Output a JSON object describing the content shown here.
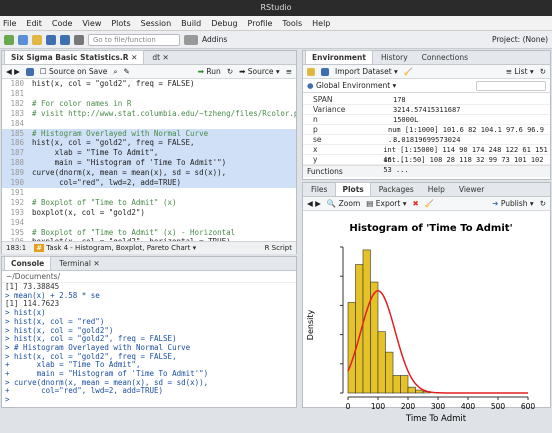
{
  "window": {
    "title": "RStudio"
  },
  "menu": [
    "File",
    "Edit",
    "Code",
    "View",
    "Plots",
    "Session",
    "Build",
    "Debug",
    "Profile",
    "Tools",
    "Help"
  ],
  "toolbar": {
    "goto": "Go to file/function",
    "addins": "Addins",
    "project": "Project: (None)"
  },
  "editor": {
    "tabs": [
      "Six Sigma Basic Statistics.R",
      "dt"
    ],
    "source_on_save": "Source on Save",
    "run": "Run",
    "source": "Source",
    "lines": [
      {
        "n": "180",
        "t": "hist(x, col = \"gold2\", freq = FALSE)"
      },
      {
        "n": "181",
        "t": ""
      },
      {
        "n": "182",
        "t": "# For color names in R"
      },
      {
        "n": "183",
        "t": "# visit http://www.stat.columbia.edu/~tzheng/files/Rcolor.pdf"
      },
      {
        "n": "184",
        "t": ""
      },
      {
        "n": "185",
        "t": "# Histogram Overlayed with Normal Curve"
      },
      {
        "n": "186",
        "t": "hist(x, col = \"gold2\", freq = FALSE,"
      },
      {
        "n": "187",
        "t": "     xlab = \"Time To Admit\","
      },
      {
        "n": "188",
        "t": "     main = \"Histogram of 'Time To Admit'\")"
      },
      {
        "n": "189",
        "t": "curve(dnorm(x, mean = mean(x), sd = sd(x)),"
      },
      {
        "n": "190",
        "t": "      col=\"red\", lwd=2, add=TRUE)"
      },
      {
        "n": "191",
        "t": ""
      },
      {
        "n": "192",
        "t": "# Boxplot of \"Time to Admit\" (x)"
      },
      {
        "n": "193",
        "t": "boxplot(x, col = \"gold2\")"
      },
      {
        "n": "194",
        "t": ""
      },
      {
        "n": "195",
        "t": "# Boxplot of \"Time to Admit\" (x) - Horizontal"
      },
      {
        "n": "196",
        "t": "boxplot(x, col = \"gold2\", horizontal = TRUE)"
      },
      {
        "n": "197",
        "t": ""
      }
    ],
    "status_pos": "183:1",
    "status_section": "Task 4 - Histogram, Boxplot, Pareto Chart",
    "status_type": "R Script"
  },
  "console": {
    "tabs": [
      "Console",
      "Terminal"
    ],
    "path": "~/Documents/",
    "lines": [
      "[1] 73.38845",
      "> mean(x) + 2.58 * se",
      "[1] 114.7623",
      "> hist(x)",
      "> hist(x, col = \"red\")",
      "> hist(x, col = \"gold2\")",
      "> hist(x, col = \"gold2\", freq = FALSE)",
      "> # Histogram Overlayed with Normal Curve",
      "> hist(x, col = \"gold2\", freq = FALSE,",
      "+      xlab = \"Time To Admit\",",
      "+      main = \"Histogram of 'Time To Admit'\")",
      "> curve(dnorm(x, mean = mean(x), sd = sd(x)),",
      "+       col=\"red\", lwd=2, add=TRUE)",
      ">"
    ]
  },
  "environment": {
    "tabs": [
      "Environment",
      "History",
      "Connections"
    ],
    "import": "Import Dataset",
    "list": "List",
    "scope": "Global Environment",
    "rows": [
      {
        "k": "SPAN",
        "v": "178"
      },
      {
        "k": "Variance",
        "v": "3214.57415311687"
      },
      {
        "k": "n",
        "v": "15000L"
      },
      {
        "k": "p",
        "v": "num [1:1000] 101.6 82 104.1 97.6 96.9 ..."
      },
      {
        "k": "se",
        "v": "8.01819699573024"
      },
      {
        "k": "x",
        "v": "int [1:15000] 114 90 174 248 122 61 151 46..."
      },
      {
        "k": "y",
        "v": "int [1:50] 108 28 118 32 99 73 101 102 53 ..."
      }
    ],
    "functions": "Functions"
  },
  "plots": {
    "tabs": [
      "Files",
      "Plots",
      "Packages",
      "Help",
      "Viewer"
    ],
    "zoom": "Zoom",
    "export": "Export",
    "publish": "Publish"
  },
  "colors": {
    "bar": "#e6c229",
    "curve": "#e02020",
    "highlight": "#cfe0f7"
  },
  "chart_data": {
    "type": "bar",
    "title": "Histogram of 'Time To Admit'",
    "xlabel": "Time To Admit",
    "ylabel": "Density",
    "bins": [
      [
        0,
        25
      ],
      [
        25,
        50
      ],
      [
        50,
        75
      ],
      [
        75,
        100
      ],
      [
        100,
        125
      ],
      [
        125,
        150
      ],
      [
        150,
        175
      ],
      [
        175,
        200
      ],
      [
        200,
        225
      ],
      [
        225,
        250
      ],
      [
        250,
        275
      ]
    ],
    "values": [
      0.0062,
      0.0088,
      0.0098,
      0.0076,
      0.0042,
      0.0028,
      0.0012,
      0.0012,
      0.0004,
      0.0002,
      0.0001
    ],
    "normal_curve": {
      "mean": 100,
      "sd": 57
    },
    "xlim": [
      0,
      600
    ],
    "xticks": [
      "0",
      "100",
      "200",
      "300",
      "400",
      "500",
      "600"
    ],
    "ylim": [
      0,
      0.01
    ]
  }
}
